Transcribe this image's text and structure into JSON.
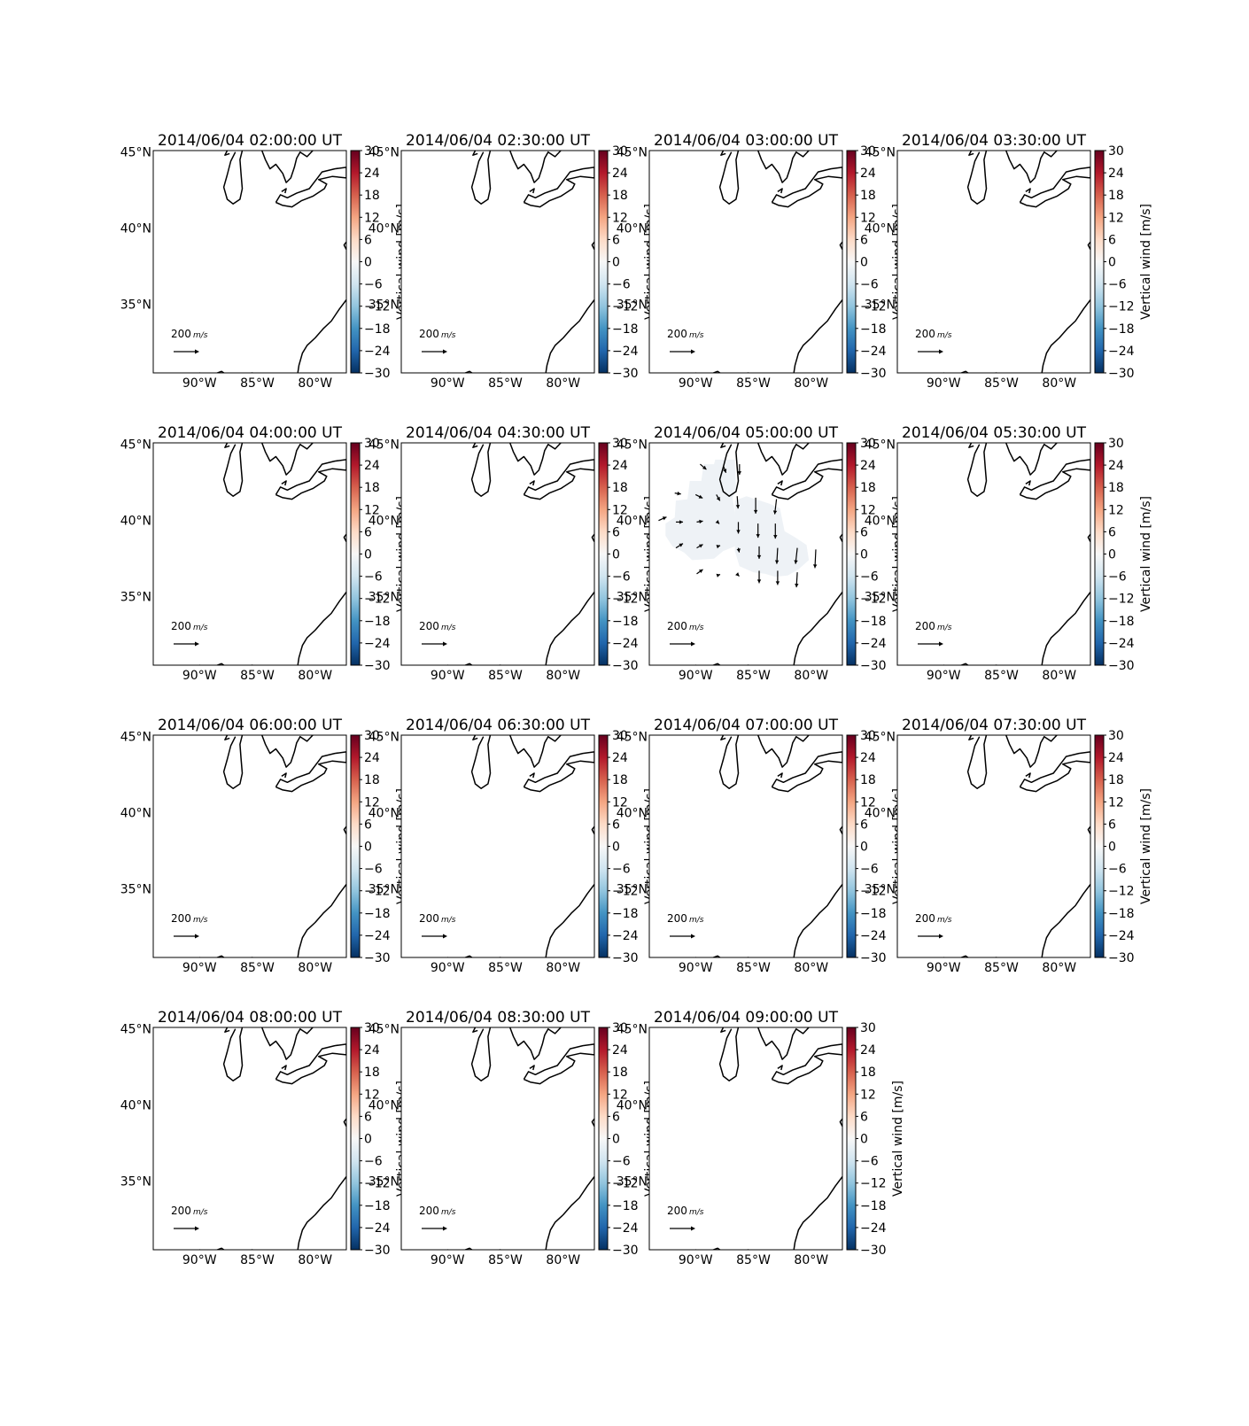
{
  "figure": {
    "colorbar": {
      "label": "Vertical wind [m/s]",
      "ticks": [
        "30",
        "24",
        "18",
        "12",
        "6",
        "0",
        "−6",
        "−12",
        "−18",
        "−24",
        "−30"
      ],
      "vmin": -30,
      "vmax": 30,
      "colormap": "RdBu_r"
    },
    "axes": {
      "lon_ticks": [
        "90°W",
        "85°W",
        "80°W"
      ],
      "lat_ticks": [
        "45°N",
        "40°N",
        "35°N"
      ],
      "lon_range": [
        -94,
        -77.3
      ],
      "lat_range": [
        30.5,
        45.1
      ]
    },
    "quiver_key": {
      "value": "200",
      "unit": "m/s"
    },
    "panels": [
      {
        "title": "2014/06/04 02:00:00 UT"
      },
      {
        "title": "2014/06/04 02:30:00 UT"
      },
      {
        "title": "2014/06/04 03:00:00 UT"
      },
      {
        "title": "2014/06/04 03:30:00 UT"
      },
      {
        "title": "2014/06/04 04:00:00 UT"
      },
      {
        "title": "2014/06/04 04:30:00 UT"
      },
      {
        "title": "2014/06/04 05:00:00 UT",
        "has_data": true
      },
      {
        "title": "2014/06/04 05:30:00 UT"
      },
      {
        "title": "2014/06/04 06:00:00 UT"
      },
      {
        "title": "2014/06/04 06:30:00 UT"
      },
      {
        "title": "2014/06/04 07:00:00 UT"
      },
      {
        "title": "2014/06/04 07:30:00 UT"
      },
      {
        "title": "2014/06/04 08:00:00 UT"
      },
      {
        "title": "2014/06/04 08:30:00 UT"
      },
      {
        "title": "2014/06/04 09:00:00 UT"
      }
    ],
    "colors": {
      "coast": "#000000",
      "data_fill": "#eef2f6",
      "arrow": "#000000"
    }
  }
}
